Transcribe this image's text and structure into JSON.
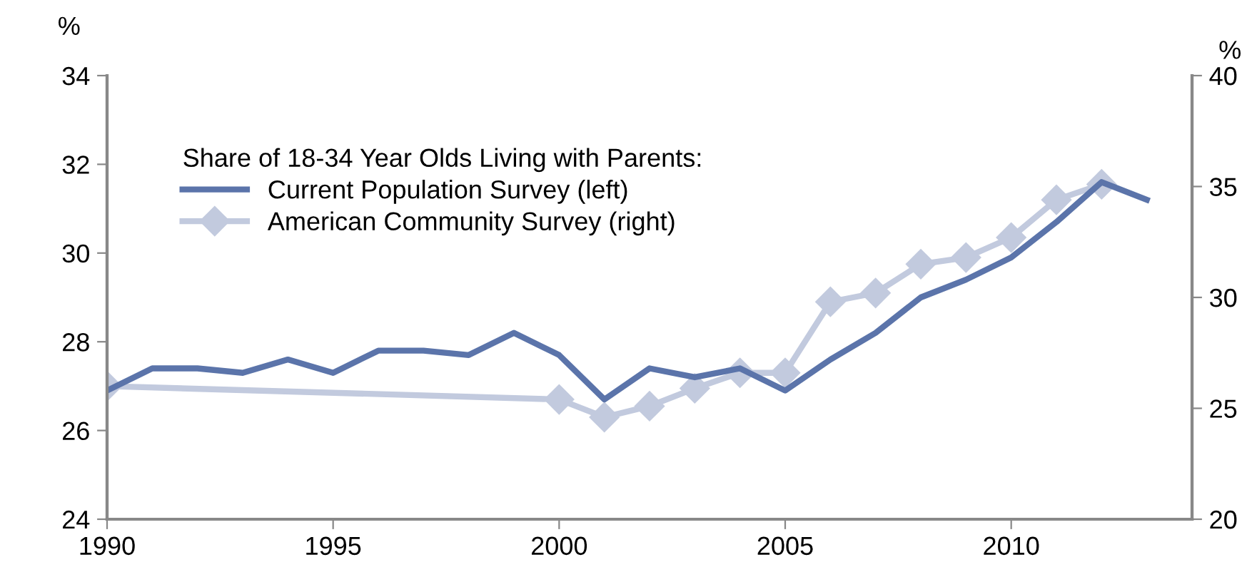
{
  "chart_data": {
    "type": "line",
    "legend_title": "Share of 18-34 Year Olds Living with Parents:",
    "ylabel": "%",
    "y2label": "%",
    "xlim": [
      1990,
      2014
    ],
    "xticks": [
      1990,
      1995,
      2000,
      2005,
      2010
    ],
    "ylim": [
      24,
      34
    ],
    "yticks": [
      24,
      26,
      28,
      30,
      32,
      34
    ],
    "y2lim": [
      20,
      40
    ],
    "y2ticks": [
      20,
      25,
      30,
      35,
      40
    ],
    "grid": false,
    "legend": "top left",
    "series": [
      {
        "name": "Current Population Survey (left)",
        "color": "#5b74aa",
        "marker": "none",
        "x": [
          1990,
          1991,
          1992,
          1993,
          1994,
          1995,
          1996,
          1997,
          1998,
          1999,
          2000,
          2001,
          2002,
          2003,
          2004,
          2005,
          2006,
          2007,
          2008,
          2009,
          2010,
          2011,
          2012,
          2013
        ],
        "values": [
          26.9,
          27.4,
          27.4,
          27.3,
          27.6,
          27.3,
          27.8,
          27.8,
          27.7,
          28.2,
          27.7,
          26.7,
          27.4,
          27.2,
          27.4,
          26.9,
          27.6,
          28.2,
          29.0,
          29.4,
          29.9,
          30.7,
          31.6,
          31.2
        ]
      },
      {
        "name": "American Community Survey (right)",
        "color": "#c2cade",
        "marker": "diamond",
        "axis": "y2",
        "x": [
          1990,
          2000,
          2001,
          2002,
          2003,
          2004,
          2005,
          2006,
          2007,
          2008,
          2009,
          2010,
          2011,
          2012
        ],
        "values": [
          26.0,
          25.4,
          24.6,
          25.1,
          25.9,
          26.6,
          26.6,
          29.8,
          30.2,
          31.5,
          31.8,
          32.7,
          34.4,
          35.1
        ]
      }
    ]
  }
}
